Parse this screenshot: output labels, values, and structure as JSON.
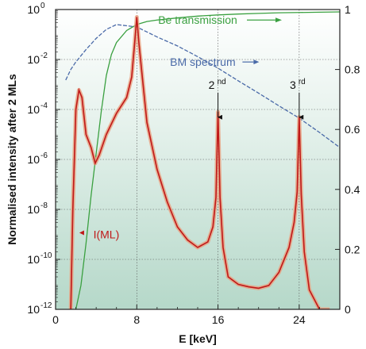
{
  "chart_data": {
    "type": "line",
    "title": "",
    "xlabel": "E [keV]",
    "ylabel": "Normalised intensity after 2 MLs",
    "xlim": [
      0,
      28
    ],
    "ylim": [
      1e-12,
      1
    ],
    "yscale": "log",
    "y2lim": [
      0,
      1
    ],
    "grid": "dotted",
    "x_ticks": [
      "0",
      "8",
      "16",
      "24"
    ],
    "x_tick_values": [
      0,
      8,
      16,
      24
    ],
    "y_tick_exponents": [
      0,
      -2,
      -4,
      -6,
      -8,
      -10,
      -12
    ],
    "y_tick_base": "10",
    "y2_ticks": [
      "0",
      "0.2",
      "0.4",
      "0.6",
      "0.8",
      "1"
    ],
    "y2_tick_values": [
      0,
      0.2,
      0.4,
      0.6,
      0.8,
      1.0
    ],
    "series": [
      {
        "name": "Be transmission",
        "axis": "right",
        "color": "#3aa040",
        "x": [
          2.0,
          2.5,
          3.0,
          3.5,
          4.0,
          4.5,
          5.0,
          5.5,
          6.0,
          7.0,
          8.0,
          9.0,
          10.0,
          12.0,
          14.0,
          16.0,
          18.0,
          20.0,
          22.0,
          24.0,
          26.0,
          28.0
        ],
        "y": [
          0.0,
          0.08,
          0.22,
          0.38,
          0.52,
          0.66,
          0.78,
          0.85,
          0.89,
          0.93,
          0.95,
          0.96,
          0.965,
          0.972,
          0.978,
          0.982,
          0.985,
          0.987,
          0.989,
          0.99,
          0.991,
          0.992
        ]
      },
      {
        "name": "BM spectrum",
        "axis": "left",
        "color": "#4a6aa8",
        "x": [
          1.0,
          1.5,
          2.0,
          3.0,
          4.0,
          5.0,
          6.0,
          8.0,
          10.0,
          12.0,
          14.0,
          16.0,
          18.0,
          20.0,
          22.0,
          24.0,
          26.0,
          28.0
        ],
        "y": [
          0.0015,
          0.004,
          0.008,
          0.025,
          0.07,
          0.16,
          0.25,
          0.2,
          0.08,
          0.035,
          0.013,
          0.0045,
          0.0014,
          0.00045,
          0.00014,
          4.5e-05,
          1.2e-05,
          3e-06
        ]
      },
      {
        "name": "I(ML)",
        "axis": "left",
        "color": "#c01818",
        "x": [
          1.5,
          1.7,
          2.0,
          2.3,
          2.6,
          3.0,
          3.5,
          3.9,
          4.3,
          5.0,
          6.0,
          7.0,
          7.5,
          7.8,
          8.0,
          8.2,
          8.5,
          9.0,
          10.0,
          11.0,
          12.0,
          13.0,
          14.0,
          15.0,
          15.5,
          15.8,
          16.0,
          16.2,
          16.5,
          17.0,
          18.0,
          19.0,
          20.0,
          21.0,
          22.0,
          23.0,
          23.5,
          23.8,
          24.0,
          24.2,
          24.5,
          25.0,
          26.0,
          27.0
        ],
        "y": [
          1e-12,
          1e-08,
          0.0001,
          0.0006,
          0.0003,
          1e-05,
          3e-06,
          7e-07,
          1.5e-06,
          1e-05,
          7e-05,
          0.0003,
          0.002,
          0.05,
          0.5,
          0.05,
          0.003,
          3e-05,
          4e-07,
          2e-08,
          2e-09,
          6e-10,
          3e-10,
          5e-10,
          2e-09,
          3e-08,
          8e-05,
          3e-08,
          3e-10,
          2e-11,
          1e-11,
          8e-12,
          7e-12,
          9e-12,
          3e-11,
          3e-10,
          3e-09,
          5e-08,
          5e-05,
          4e-08,
          2e-10,
          6e-12,
          1e-12,
          1e-12
        ]
      }
    ],
    "annotations": [
      {
        "label": "Be transmission",
        "x": 14.0,
        "y2": 0.965,
        "color": "#3aa040"
      },
      {
        "label": "BM spectrum",
        "x": 14.5,
        "yexp": -2.1,
        "color": "#4a6aa8"
      },
      {
        "label": "I(ML)",
        "x": 5.0,
        "yexp": -9.0,
        "color": "#c01818"
      },
      {
        "label_main": "2",
        "label_sup": "nd",
        "x": 16.0,
        "peak_exp": -4.5
      },
      {
        "label_main": "3",
        "label_sup": "rd",
        "x": 24.0,
        "peak_exp": -4.5
      }
    ]
  }
}
